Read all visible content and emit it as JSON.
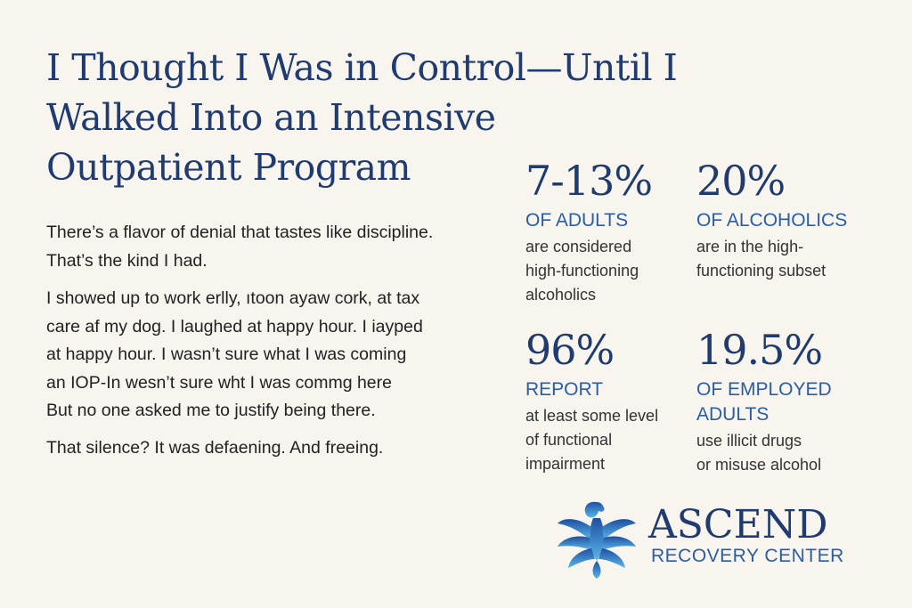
{
  "header": {
    "title_lines": [
      "I Thought I Was in Control—Until I",
      "Walked Into an Intensive",
      "Outpatient Program"
    ]
  },
  "article": {
    "paragraphs": [
      [
        "There’s a flavor of denial that tastes like discipline.",
        "That’s the kind I had."
      ],
      [
        "I showed up to work erlly, ıtoon ayaw cork, at tax",
        "care af my dog. I laughed at happy hour. I iayped",
        "at happy hour. I wasn’t sure what I was coming",
        "an IOP-In wesn’t sure wht I was commg here",
        "But no one asked me to justify being there."
      ],
      [
        "That silence? It was defaening. And freeing."
      ]
    ]
  },
  "stats": [
    {
      "value": "7-13%",
      "label_lines": [
        "OF ADULTS"
      ],
      "description_lines": [
        "are considered",
        "high-functioning",
        "alcoholics"
      ]
    },
    {
      "value": "20%",
      "label_lines": [
        "OF ALCOHOLICS"
      ],
      "description_lines": [
        "are in the high-",
        "functioning subset"
      ]
    },
    {
      "value": "96%",
      "label_lines": [
        "REPORT"
      ],
      "description_lines": [
        "at least some level",
        "of functional",
        "impairment"
      ]
    },
    {
      "value": "19.5%",
      "label_lines": [
        "OF EMPLOYED",
        "ADULTS"
      ],
      "description_lines": [
        "use illicit drugs",
        "or misuse alcohol"
      ]
    }
  ],
  "logo": {
    "name": "ASCEND",
    "tagline": "RECOVERY CENTER"
  }
}
